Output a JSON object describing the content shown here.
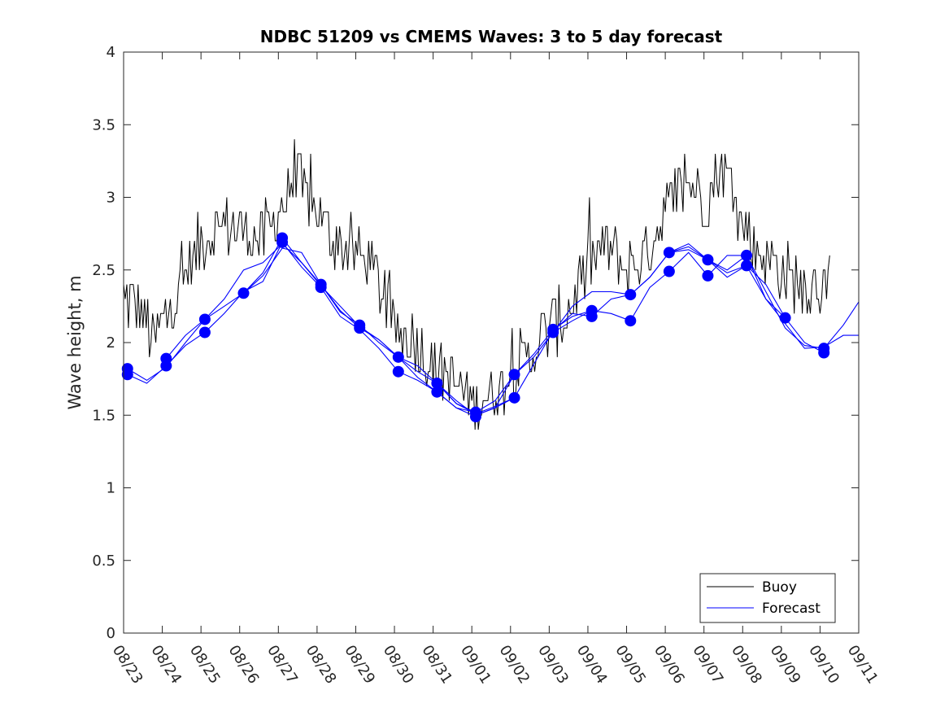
{
  "chart_data": {
    "type": "line",
    "title": "NDBC 51209 vs CMEMS Waves: 3 to 5 day forecast",
    "xlabel": "",
    "ylabel": "Wave height, m",
    "xlim": [
      0,
      19
    ],
    "ylim": [
      0,
      4
    ],
    "yticks": [
      0,
      0.5,
      1,
      1.5,
      2,
      2.5,
      3,
      3.5,
      4
    ],
    "ytick_labels": [
      "0",
      "0.5",
      "1",
      "1.5",
      "2",
      "2.5",
      "3",
      "3.5",
      "4"
    ],
    "xticks": [
      0,
      1,
      2,
      3,
      4,
      5,
      6,
      7,
      8,
      9,
      10,
      11,
      12,
      13,
      14,
      15,
      16,
      17,
      18,
      19
    ],
    "xtick_labels": [
      "08/23",
      "08/24",
      "08/25",
      "08/26",
      "08/27",
      "08/28",
      "08/29",
      "08/30",
      "08/31",
      "09/01",
      "09/02",
      "09/03",
      "09/04",
      "09/05",
      "09/06",
      "09/07",
      "09/08",
      "09/09",
      "09/10",
      "09/11"
    ],
    "legend": {
      "position": "bottom-right",
      "entries": [
        {
          "label": "Buoy",
          "color": "#000000"
        },
        {
          "label": "Forecast",
          "color": "#0000ff"
        }
      ]
    },
    "buoy_color": "#000000",
    "forecast_color": "#0000ff",
    "buoy_keypoints": {
      "x": [
        0,
        0.5,
        0.8,
        1.3,
        2.0,
        2.5,
        3.0,
        3.5,
        4.0,
        4.5,
        5.0,
        5.5,
        6.0,
        6.5,
        7.0,
        7.5,
        8.0,
        8.5,
        9.0,
        9.5,
        10.0,
        10.5,
        11.0,
        11.5,
        12.0,
        12.5,
        13.0,
        13.5,
        14.0,
        14.5,
        15.0,
        15.5,
        16.0,
        16.5,
        17.0,
        17.5,
        18.0,
        18.25
      ],
      "y": [
        2.3,
        2.2,
        2.0,
        2.3,
        2.7,
        2.8,
        2.8,
        2.7,
        2.9,
        3.1,
        2.9,
        2.7,
        2.6,
        2.5,
        2.1,
        2.0,
        1.85,
        1.75,
        1.6,
        1.62,
        1.8,
        1.9,
        2.1,
        2.2,
        2.5,
        2.7,
        2.5,
        2.6,
        2.9,
        3.1,
        3.0,
        3.2,
        2.8,
        2.6,
        2.5,
        2.4,
        2.4,
        2.4
      ]
    },
    "series": [
      {
        "name": "Forecast",
        "x": [
          0.1,
          0.6,
          1.1,
          1.6,
          2.1,
          2.6,
          3.1,
          3.6,
          4.1,
          4.6,
          5.1,
          5.6,
          6.1,
          6.6,
          7.1,
          7.6,
          8.1,
          8.6,
          9.1
        ],
        "y": [
          1.82,
          1.74,
          1.83,
          2.0,
          2.16,
          2.25,
          2.34,
          2.48,
          2.72,
          2.55,
          2.4,
          2.21,
          2.12,
          2.0,
          1.9,
          1.8,
          1.72,
          1.58,
          1.52
        ]
      },
      {
        "name": "Forecast",
        "x": [
          0.1,
          0.6,
          1.1,
          1.6,
          2.1,
          2.6,
          3.1,
          3.6,
          4.1,
          4.6,
          5.1,
          5.6,
          6.1,
          6.6,
          7.1,
          7.6,
          8.1,
          8.6,
          9.1
        ],
        "y": [
          1.78,
          1.72,
          1.84,
          1.98,
          2.07,
          2.2,
          2.35,
          2.42,
          2.69,
          2.52,
          2.38,
          2.18,
          2.09,
          1.96,
          1.8,
          1.74,
          1.66,
          1.55,
          1.49
        ]
      },
      {
        "name": "Forecast",
        "x": [
          1.1,
          1.6,
          2.1,
          2.6,
          3.1,
          3.6,
          4.1,
          4.6,
          5.1,
          5.6,
          6.1,
          6.6,
          7.1,
          7.6,
          8.1,
          8.6,
          9.1,
          9.6,
          10.1
        ],
        "y": [
          1.89,
          2.05,
          2.16,
          2.3,
          2.5,
          2.55,
          2.68,
          2.55,
          2.39,
          2.25,
          2.11,
          2.02,
          1.9,
          1.84,
          1.72,
          1.6,
          1.5,
          1.55,
          1.62
        ]
      },
      {
        "name": "Forecast",
        "x": [
          3.1,
          3.6,
          4.1,
          4.6,
          5.1,
          5.6,
          6.1,
          6.6,
          7.1,
          7.6,
          8.1,
          8.6,
          9.1,
          9.6,
          10.1,
          10.6,
          11.1,
          11.6,
          12.1
        ],
        "y": [
          2.34,
          2.46,
          2.65,
          2.62,
          2.4,
          2.22,
          2.1,
          2.02,
          1.9,
          1.76,
          1.66,
          1.55,
          1.52,
          1.6,
          1.78,
          1.9,
          2.07,
          2.15,
          2.22
        ]
      },
      {
        "name": "Forecast",
        "x": [
          8.1,
          8.6,
          9.1,
          9.6,
          10.1,
          10.6,
          11.1,
          11.6,
          12.1,
          12.6,
          13.1,
          13.6,
          14.1,
          14.6,
          15.1,
          15.6,
          16.1,
          16.6,
          17.1
        ],
        "y": [
          1.72,
          1.58,
          1.51,
          1.56,
          1.62,
          1.85,
          2.08,
          2.2,
          2.18,
          2.3,
          2.33,
          2.45,
          2.62,
          2.68,
          2.57,
          2.45,
          2.53,
          2.4,
          2.17
        ]
      },
      {
        "name": "Forecast",
        "x": [
          9.1,
          9.6,
          10.1,
          10.6,
          11.1,
          11.6,
          12.1,
          12.6,
          13.1,
          13.6,
          14.1,
          14.6,
          15.1,
          15.6,
          16.1,
          16.6,
          17.1,
          17.6,
          18.1
        ],
        "y": [
          1.5,
          1.55,
          1.78,
          1.92,
          2.09,
          2.18,
          2.22,
          2.2,
          2.15,
          2.38,
          2.49,
          2.62,
          2.46,
          2.6,
          2.6,
          2.3,
          2.17,
          2.0,
          1.93
        ]
      },
      {
        "name": "Forecast",
        "x": [
          11.1,
          11.6,
          12.1,
          12.6,
          13.1,
          13.6,
          14.1,
          14.6,
          15.1,
          15.6,
          16.1,
          16.6,
          17.1,
          17.6,
          18.1,
          18.6,
          19.0
        ],
        "y": [
          2.07,
          2.25,
          2.35,
          2.35,
          2.33,
          2.45,
          2.62,
          2.66,
          2.57,
          2.5,
          2.6,
          2.35,
          2.1,
          1.98,
          1.96,
          2.12,
          2.28
        ]
      },
      {
        "name": "Forecast",
        "x": [
          14.1,
          14.6,
          15.1,
          15.6,
          16.1,
          16.6,
          17.1,
          17.6,
          18.1,
          18.6,
          19.0
        ],
        "y": [
          2.62,
          2.64,
          2.57,
          2.48,
          2.53,
          2.3,
          2.13,
          1.96,
          1.97,
          2.05,
          2.05
        ]
      }
    ],
    "forecast_markers": {
      "x": [
        0.1,
        0.1,
        1.1,
        1.1,
        2.1,
        2.1,
        3.1,
        4.1,
        4.1,
        5.1,
        5.1,
        6.1,
        6.1,
        7.1,
        7.1,
        8.1,
        8.1,
        9.1,
        9.1,
        10.1,
        10.1,
        11.1,
        11.1,
        12.1,
        12.1,
        13.1,
        13.1,
        14.1,
        14.1,
        15.1,
        15.1,
        16.1,
        16.1,
        17.1,
        18.1,
        18.1
      ],
      "y": [
        1.82,
        1.78,
        1.89,
        1.84,
        2.16,
        2.07,
        2.34,
        2.72,
        2.69,
        2.4,
        2.38,
        2.12,
        2.1,
        1.9,
        1.8,
        1.72,
        1.66,
        1.52,
        1.49,
        1.78,
        1.62,
        2.09,
        2.07,
        2.22,
        2.18,
        2.33,
        2.15,
        2.62,
        2.49,
        2.57,
        2.46,
        2.6,
        2.53,
        2.17,
        1.96,
        1.93
      ]
    }
  }
}
